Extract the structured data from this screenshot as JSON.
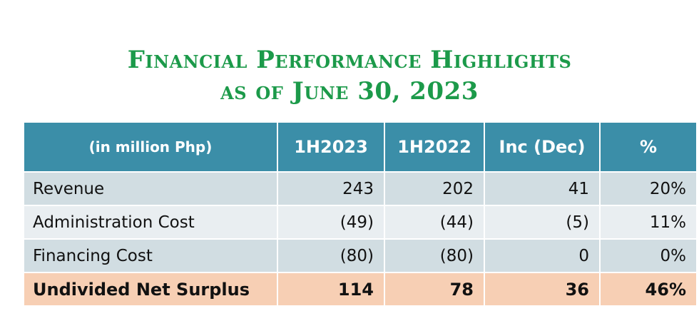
{
  "title": {
    "line1": "Financial Performance Highlights",
    "line2": "as of June 30, 2023"
  },
  "table": {
    "headers": [
      "(in million Php)",
      "1H2023",
      "1H2022",
      "Inc (Dec)",
      "%"
    ],
    "rows": [
      {
        "label": "Revenue",
        "h2023": "243",
        "h2022": "202",
        "inc": "41",
        "pct": "20%"
      },
      {
        "label": "Administration Cost",
        "h2023": "(49)",
        "h2022": "(44)",
        "inc": "(5)",
        "pct": "11%"
      },
      {
        "label": "Financing Cost",
        "h2023": "(80)",
        "h2022": "(80)",
        "inc": "0",
        "pct": "0%"
      },
      {
        "label": "Undivided Net Surplus",
        "h2023": "114",
        "h2022": "78",
        "inc": "36",
        "pct": "46%"
      }
    ]
  },
  "colors": {
    "title": "#1c9a4a",
    "header_bg": "#3b8ea8",
    "row_dark": "#d1dde2",
    "row_light": "#e9eef1",
    "total_row": "#f7cfb4"
  }
}
